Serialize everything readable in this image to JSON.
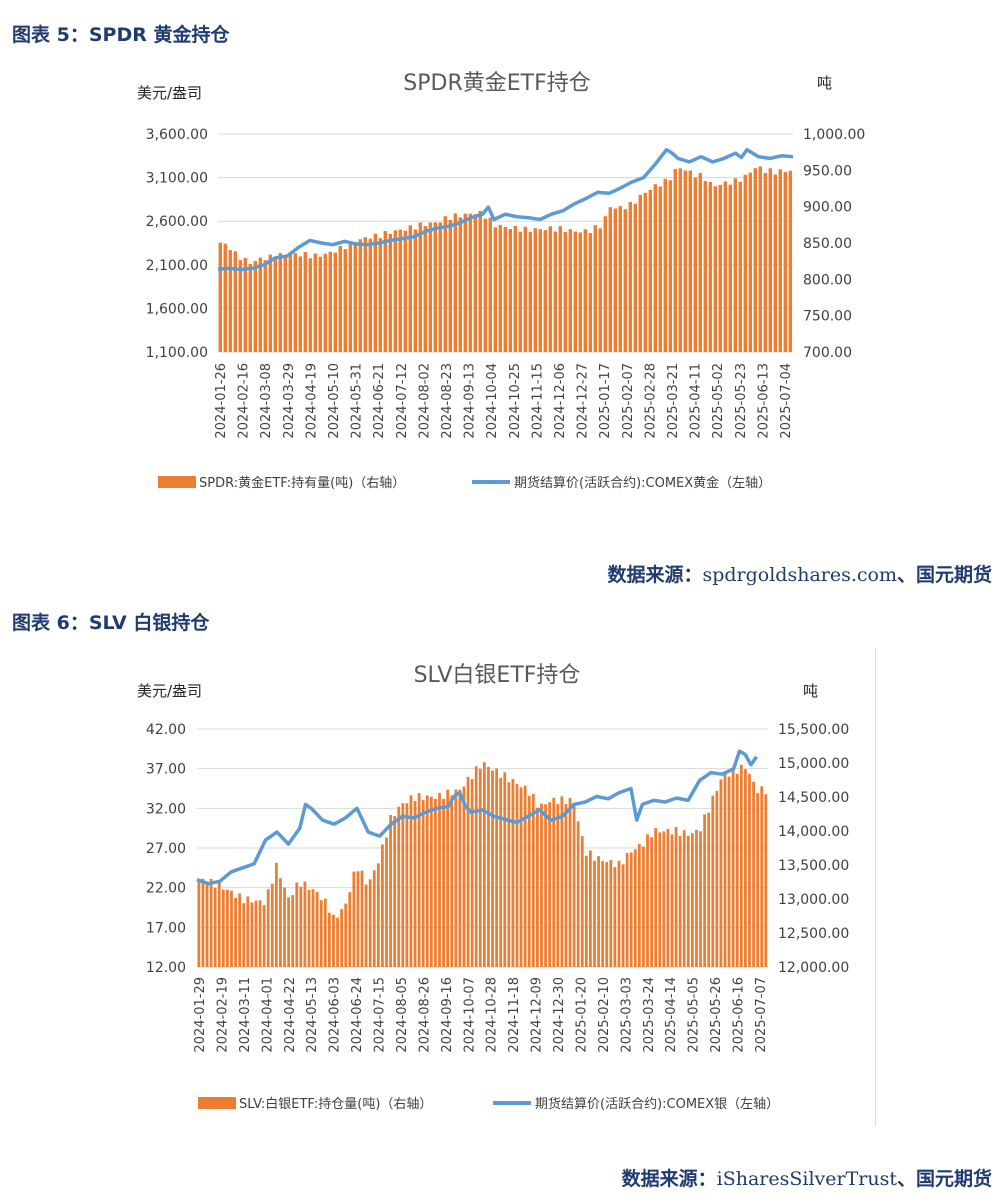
{
  "figures": [
    {
      "caption": "图表 5：SPDR 黄金持仓",
      "source_label": "数据来源：",
      "source_site": "spdrgoldshares.com",
      "source_tail": "、国元期货"
    },
    {
      "caption": "图表 6：SLV 白银持仓",
      "source_label": "数据来源：",
      "source_site": "iSharesSilverTrust",
      "source_tail": "、国元期货"
    }
  ],
  "colors": {
    "bar": "#ED7D31",
    "line": "#5B9BD5",
    "caption": "#1f3b70"
  },
  "chart_data": [
    {
      "type": "bar+line",
      "title": "SPDR黄金ETF持仓",
      "ylabel_left": "美元/盎司",
      "ylabel_right": "吨",
      "yleft_lim": [
        1100,
        3600
      ],
      "yright_lim": [
        700,
        1000
      ],
      "yleft_ticks": [
        "1,100.00",
        "1,600.00",
        "2,100.00",
        "2,600.00",
        "3,100.00",
        "3,600.00"
      ],
      "yright_ticks": [
        "700.00",
        "750.00",
        "800.00",
        "850.00",
        "900.00",
        "950.00",
        "1,000.00"
      ],
      "x_ticks": [
        "2024-01-26",
        "2024-02-16",
        "2024-03-08",
        "2024-03-29",
        "2024-04-19",
        "2024-05-10",
        "2024-05-31",
        "2024-06-21",
        "2024-07-12",
        "2024-08-02",
        "2024-08-23",
        "2024-09-13",
        "2024-10-04",
        "2024-10-25",
        "2024-11-15",
        "2024-12-06",
        "2024-12-27",
        "2025-01-17",
        "2025-02-07",
        "2025-02-28",
        "2025-03-21",
        "2025-04-11",
        "2025-05-02",
        "2025-05-23",
        "2025-06-13",
        "2025-07-04"
      ],
      "grid": true,
      "legend_position": "bottom",
      "series": [
        {
          "name": "SPDR:黄金ETF:持有量(吨)（右轴）",
          "kind": "bar",
          "axis": "right",
          "anchors": [
            [
              0,
              852
            ],
            [
              2,
              845
            ],
            [
              3,
              835
            ],
            [
              5,
              825
            ],
            [
              6,
              822
            ],
            [
              7,
              828
            ],
            [
              9,
              830
            ],
            [
              11,
              833
            ],
            [
              13,
              835
            ],
            [
              15,
              834
            ],
            [
              17,
              832
            ],
            [
              19,
              835
            ],
            [
              20,
              838
            ],
            [
              22,
              845
            ],
            [
              24,
              852
            ],
            [
              26,
              858
            ],
            [
              28,
              860
            ],
            [
              30,
              865
            ],
            [
              32,
              868
            ],
            [
              34,
              872
            ],
            [
              36,
              876
            ],
            [
              38,
              878
            ],
            [
              40,
              885
            ],
            [
              42,
              888
            ],
            [
              44,
              890
            ],
            [
              45,
              892
            ],
            [
              46,
              890
            ],
            [
              47,
              885
            ],
            [
              48,
              875
            ],
            [
              50,
              872
            ],
            [
              52,
              870
            ],
            [
              54,
              868
            ],
            [
              56,
              869
            ],
            [
              58,
              870
            ],
            [
              60,
              869
            ],
            [
              62,
              866
            ],
            [
              64,
              866
            ],
            [
              65,
              868
            ],
            [
              66,
              872
            ],
            [
              67,
              875
            ],
            [
              68,
              900
            ],
            [
              70,
              898
            ],
            [
              72,
              903
            ],
            [
              74,
              918
            ],
            [
              76,
              928
            ],
            [
              78,
              935
            ],
            [
              79,
              942
            ],
            [
              80,
              955
            ],
            [
              81,
              952
            ],
            [
              82,
              948
            ],
            [
              83,
              944
            ],
            [
              84,
              942
            ],
            [
              85,
              938
            ],
            [
              86,
              928
            ],
            [
              87,
              930
            ],
            [
              88,
              932
            ],
            [
              90,
              935
            ],
            [
              92,
              942
            ],
            [
              93,
              952
            ],
            [
              94,
              955
            ],
            [
              95,
              950
            ],
            [
              97,
              948
            ],
            [
              100,
              950
            ]
          ]
        },
        {
          "name": "期货结算价(活跃合约):COMEX黄金（左轴）",
          "kind": "line",
          "axis": "left",
          "anchors": [
            [
              0,
              2050
            ],
            [
              2,
              2060
            ],
            [
              4,
              2045
            ],
            [
              6,
              2060
            ],
            [
              8,
              2100
            ],
            [
              10,
              2180
            ],
            [
              12,
              2200
            ],
            [
              14,
              2300
            ],
            [
              16,
              2380
            ],
            [
              18,
              2350
            ],
            [
              20,
              2330
            ],
            [
              22,
              2370
            ],
            [
              24,
              2340
            ],
            [
              26,
              2330
            ],
            [
              28,
              2350
            ],
            [
              30,
              2380
            ],
            [
              32,
              2400
            ],
            [
              34,
              2420
            ],
            [
              36,
              2480
            ],
            [
              38,
              2520
            ],
            [
              40,
              2540
            ],
            [
              42,
              2580
            ],
            [
              44,
              2640
            ],
            [
              46,
              2680
            ],
            [
              47,
              2760
            ],
            [
              48,
              2620
            ],
            [
              50,
              2680
            ],
            [
              52,
              2650
            ],
            [
              54,
              2640
            ],
            [
              56,
              2620
            ],
            [
              58,
              2680
            ],
            [
              60,
              2720
            ],
            [
              62,
              2800
            ],
            [
              64,
              2860
            ],
            [
              66,
              2930
            ],
            [
              68,
              2920
            ],
            [
              70,
              2980
            ],
            [
              72,
              3050
            ],
            [
              74,
              3100
            ],
            [
              76,
              3250
            ],
            [
              78,
              3420
            ],
            [
              79,
              3380
            ],
            [
              80,
              3320
            ],
            [
              82,
              3280
            ],
            [
              84,
              3340
            ],
            [
              86,
              3280
            ],
            [
              88,
              3320
            ],
            [
              90,
              3380
            ],
            [
              91,
              3330
            ],
            [
              92,
              3420
            ],
            [
              93,
              3380
            ],
            [
              94,
              3340
            ],
            [
              96,
              3320
            ],
            [
              98,
              3350
            ],
            [
              100,
              3340
            ]
          ]
        }
      ]
    },
    {
      "type": "bar+line",
      "title": "SLV白银ETF持仓",
      "ylabel_left": "美元/盎司",
      "ylabel_right": "吨",
      "yleft_lim": [
        12,
        42
      ],
      "yright_lim": [
        12000,
        15500
      ],
      "yleft_ticks": [
        "12.00",
        "17.00",
        "22.00",
        "27.00",
        "32.00",
        "37.00",
        "42.00"
      ],
      "yright_ticks": [
        "12,000.00",
        "12,500.00",
        "13,000.00",
        "13,500.00",
        "14,000.00",
        "14,500.00",
        "15,000.00",
        "15,500.00"
      ],
      "x_ticks": [
        "2024-01-29",
        "2024-02-19",
        "2024-03-11",
        "2024-04-01",
        "2024-04-22",
        "2024-05-13",
        "2024-06-03",
        "2024-06-24",
        "2024-07-15",
        "2024-08-05",
        "2024-08-26",
        "2024-09-16",
        "2024-10-07",
        "2024-10-28",
        "2024-11-18",
        "2024-12-09",
        "2024-12-30",
        "2025-01-20",
        "2025-02-10",
        "2025-03-03",
        "2025-03-24",
        "2025-04-14",
        "2025-05-05",
        "2025-05-26",
        "2025-06-16",
        "2025-07-07"
      ],
      "grid": true,
      "legend_position": "bottom",
      "series": [
        {
          "name": "SLV:白银ETF:持仓量(吨)（右轴）",
          "kind": "bar",
          "axis": "right",
          "anchors": [
            [
              0,
              13300
            ],
            [
              4,
              13200
            ],
            [
              8,
              13000
            ],
            [
              12,
              12950
            ],
            [
              14,
              13500
            ],
            [
              16,
              13000
            ],
            [
              18,
              13250
            ],
            [
              21,
              13100
            ],
            [
              23,
              12900
            ],
            [
              24,
              12700
            ],
            [
              26,
              12900
            ],
            [
              28,
              13500
            ],
            [
              30,
              13200
            ],
            [
              32,
              13600
            ],
            [
              34,
              14200
            ],
            [
              36,
              14400
            ],
            [
              38,
              14500
            ],
            [
              42,
              14500
            ],
            [
              46,
              14600
            ],
            [
              48,
              14800
            ],
            [
              50,
              15000
            ],
            [
              52,
              14900
            ],
            [
              56,
              14700
            ],
            [
              58,
              14600
            ],
            [
              60,
              14350
            ],
            [
              62,
              14450
            ],
            [
              66,
              14450
            ],
            [
              68,
              13700
            ],
            [
              70,
              13600
            ],
            [
              72,
              13550
            ],
            [
              74,
              13500
            ],
            [
              76,
              13700
            ],
            [
              78,
              13800
            ],
            [
              80,
              14000
            ],
            [
              82,
              14000
            ],
            [
              84,
              14000
            ],
            [
              86,
              13950
            ],
            [
              88,
              14000
            ],
            [
              90,
              14400
            ],
            [
              92,
              14800
            ],
            [
              96,
              14950
            ],
            [
              97,
              14800
            ],
            [
              98,
              14600
            ]
          ]
        },
        {
          "name": "期货结算价(活跃合约):COMEX银（左轴）",
          "kind": "line",
          "axis": "left",
          "anchors": [
            [
              0,
              23
            ],
            [
              2,
              22.5
            ],
            [
              4,
              22.8
            ],
            [
              6,
              24
            ],
            [
              8,
              24.5
            ],
            [
              10,
              25
            ],
            [
              12,
              28
            ],
            [
              14,
              29
            ],
            [
              16,
              27.5
            ],
            [
              18,
              29.5
            ],
            [
              19,
              32.5
            ],
            [
              20,
              32
            ],
            [
              22,
              30.5
            ],
            [
              24,
              30
            ],
            [
              26,
              30.8
            ],
            [
              28,
              32
            ],
            [
              30,
              29
            ],
            [
              32,
              28.5
            ],
            [
              34,
              30
            ],
            [
              36,
              31
            ],
            [
              38,
              30.8
            ],
            [
              40,
              31.5
            ],
            [
              42,
              32
            ],
            [
              44,
              32.2
            ],
            [
              45,
              33.5
            ],
            [
              46,
              34
            ],
            [
              47,
              32.3
            ],
            [
              48,
              31.5
            ],
            [
              50,
              31.8
            ],
            [
              52,
              31
            ],
            [
              54,
              30.6
            ],
            [
              56,
              30.2
            ],
            [
              58,
              31
            ],
            [
              60,
              31.8
            ],
            [
              62,
              30.5
            ],
            [
              64,
              31
            ],
            [
              66,
              32.5
            ],
            [
              68,
              32.8
            ],
            [
              70,
              33.5
            ],
            [
              72,
              33.2
            ],
            [
              74,
              34
            ],
            [
              76,
              34.5
            ],
            [
              77,
              30.5
            ],
            [
              78,
              32.5
            ],
            [
              80,
              33
            ],
            [
              82,
              32.8
            ],
            [
              84,
              33.3
            ],
            [
              86,
              33
            ],
            [
              88,
              35.5
            ],
            [
              90,
              36.5
            ],
            [
              92,
              36.3
            ],
            [
              94,
              37
            ],
            [
              95,
              39.2
            ],
            [
              96,
              38.8
            ],
            [
              97,
              37.5
            ],
            [
              98,
              38.5
            ]
          ]
        }
      ]
    }
  ]
}
